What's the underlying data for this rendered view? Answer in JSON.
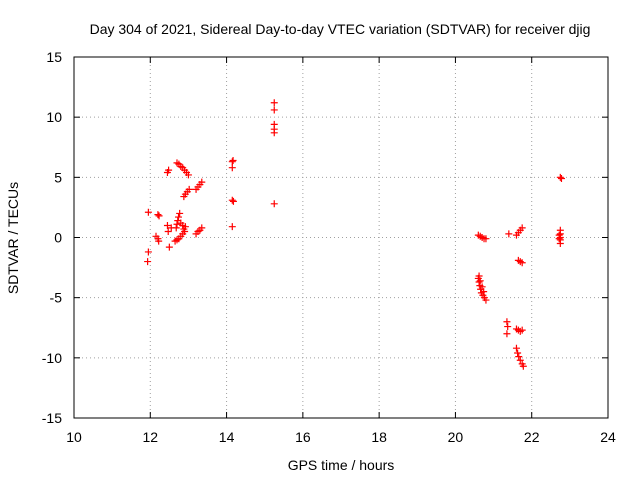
{
  "chart_data": {
    "type": "scatter",
    "title": "Day 304 of 2021, Sidereal Day-to-day VTEC variation (SDTVAR) for receiver djig",
    "xlabel": "GPS time / hours",
    "ylabel": "SDTVAR / TECUs",
    "xlim": [
      10,
      24
    ],
    "ylim": [
      -15,
      15
    ],
    "xticks": [
      "10",
      "12",
      "14",
      "16",
      "18",
      "20",
      "22",
      "24"
    ],
    "yticks": [
      "-15",
      "-10",
      "-5",
      "0",
      "5",
      "10",
      "15"
    ],
    "grid": true,
    "marker": "plus",
    "series": [
      {
        "name": "SDTVAR",
        "color": "#ff0000",
        "points": [
          [
            11.95,
            2.1
          ],
          [
            11.95,
            -1.2
          ],
          [
            11.93,
            -2.0
          ],
          [
            12.15,
            0.1
          ],
          [
            12.2,
            -0.1
          ],
          [
            12.22,
            -0.3
          ],
          [
            12.2,
            1.9
          ],
          [
            12.23,
            1.8
          ],
          [
            12.45,
            5.4
          ],
          [
            12.48,
            5.6
          ],
          [
            12.45,
            1.0
          ],
          [
            12.47,
            0.5
          ],
          [
            12.5,
            -0.8
          ],
          [
            12.55,
            0.8
          ],
          [
            12.65,
            -0.3
          ],
          [
            12.7,
            -0.2
          ],
          [
            12.75,
            -0.1
          ],
          [
            12.8,
            0.1
          ],
          [
            12.85,
            0.3
          ],
          [
            12.9,
            0.5
          ],
          [
            12.68,
            0.8
          ],
          [
            12.7,
            1.1
          ],
          [
            12.72,
            1.4
          ],
          [
            12.74,
            1.7
          ],
          [
            12.77,
            2.0
          ],
          [
            12.8,
            1.2
          ],
          [
            12.85,
            1.0
          ],
          [
            12.88,
            0.7
          ],
          [
            12.92,
            0.9
          ],
          [
            12.7,
            6.2
          ],
          [
            12.75,
            6.1
          ],
          [
            12.8,
            5.9
          ],
          [
            12.85,
            5.8
          ],
          [
            12.9,
            5.6
          ],
          [
            12.95,
            5.4
          ],
          [
            13.0,
            5.2
          ],
          [
            12.88,
            3.4
          ],
          [
            12.92,
            3.6
          ],
          [
            12.97,
            3.8
          ],
          [
            13.02,
            4.0
          ],
          [
            13.2,
            4.0
          ],
          [
            13.25,
            4.2
          ],
          [
            13.3,
            4.4
          ],
          [
            13.35,
            4.6
          ],
          [
            13.2,
            0.3
          ],
          [
            13.25,
            0.5
          ],
          [
            13.3,
            0.6
          ],
          [
            13.35,
            0.8
          ],
          [
            14.15,
            6.3
          ],
          [
            14.17,
            6.4
          ],
          [
            14.15,
            5.8
          ],
          [
            14.15,
            3.1
          ],
          [
            14.18,
            3.0
          ],
          [
            14.15,
            0.9
          ],
          [
            15.25,
            11.2
          ],
          [
            15.25,
            10.6
          ],
          [
            15.25,
            9.4
          ],
          [
            15.25,
            9.0
          ],
          [
            15.25,
            8.7
          ],
          [
            15.25,
            2.8
          ],
          [
            20.6,
            0.2
          ],
          [
            20.65,
            0.1
          ],
          [
            20.7,
            0.0
          ],
          [
            20.75,
            -0.1
          ],
          [
            20.8,
            -0.1
          ],
          [
            20.6,
            -3.4
          ],
          [
            20.62,
            -3.7
          ],
          [
            20.64,
            -4.0
          ],
          [
            20.66,
            -4.3
          ],
          [
            20.68,
            -4.6
          ],
          [
            20.72,
            -4.8
          ],
          [
            20.76,
            -5.0
          ],
          [
            20.8,
            -5.2
          ],
          [
            20.62,
            -3.2
          ],
          [
            20.65,
            -3.6
          ],
          [
            20.7,
            -4.1
          ],
          [
            20.74,
            -4.5
          ],
          [
            21.35,
            -7.0
          ],
          [
            21.37,
            -7.4
          ],
          [
            21.35,
            -8.0
          ],
          [
            21.4,
            0.3
          ],
          [
            21.6,
            0.2
          ],
          [
            21.65,
            0.4
          ],
          [
            21.7,
            0.6
          ],
          [
            21.75,
            0.8
          ],
          [
            21.6,
            -7.6
          ],
          [
            21.65,
            -7.7
          ],
          [
            21.7,
            -7.8
          ],
          [
            21.75,
            -7.7
          ],
          [
            21.65,
            -1.9
          ],
          [
            21.7,
            -2.0
          ],
          [
            21.75,
            -2.1
          ],
          [
            21.6,
            -9.2
          ],
          [
            21.63,
            -9.6
          ],
          [
            21.66,
            -9.9
          ],
          [
            21.7,
            -10.2
          ],
          [
            21.75,
            -10.5
          ],
          [
            21.78,
            -10.7
          ],
          [
            22.75,
            5.0
          ],
          [
            22.78,
            4.9
          ],
          [
            22.75,
            0.6
          ],
          [
            22.75,
            0.3
          ],
          [
            22.75,
            0.0
          ],
          [
            22.75,
            -0.2
          ],
          [
            22.75,
            -0.5
          ],
          [
            22.72,
            -0.1
          ],
          [
            22.72,
            0.2
          ]
        ]
      }
    ]
  }
}
